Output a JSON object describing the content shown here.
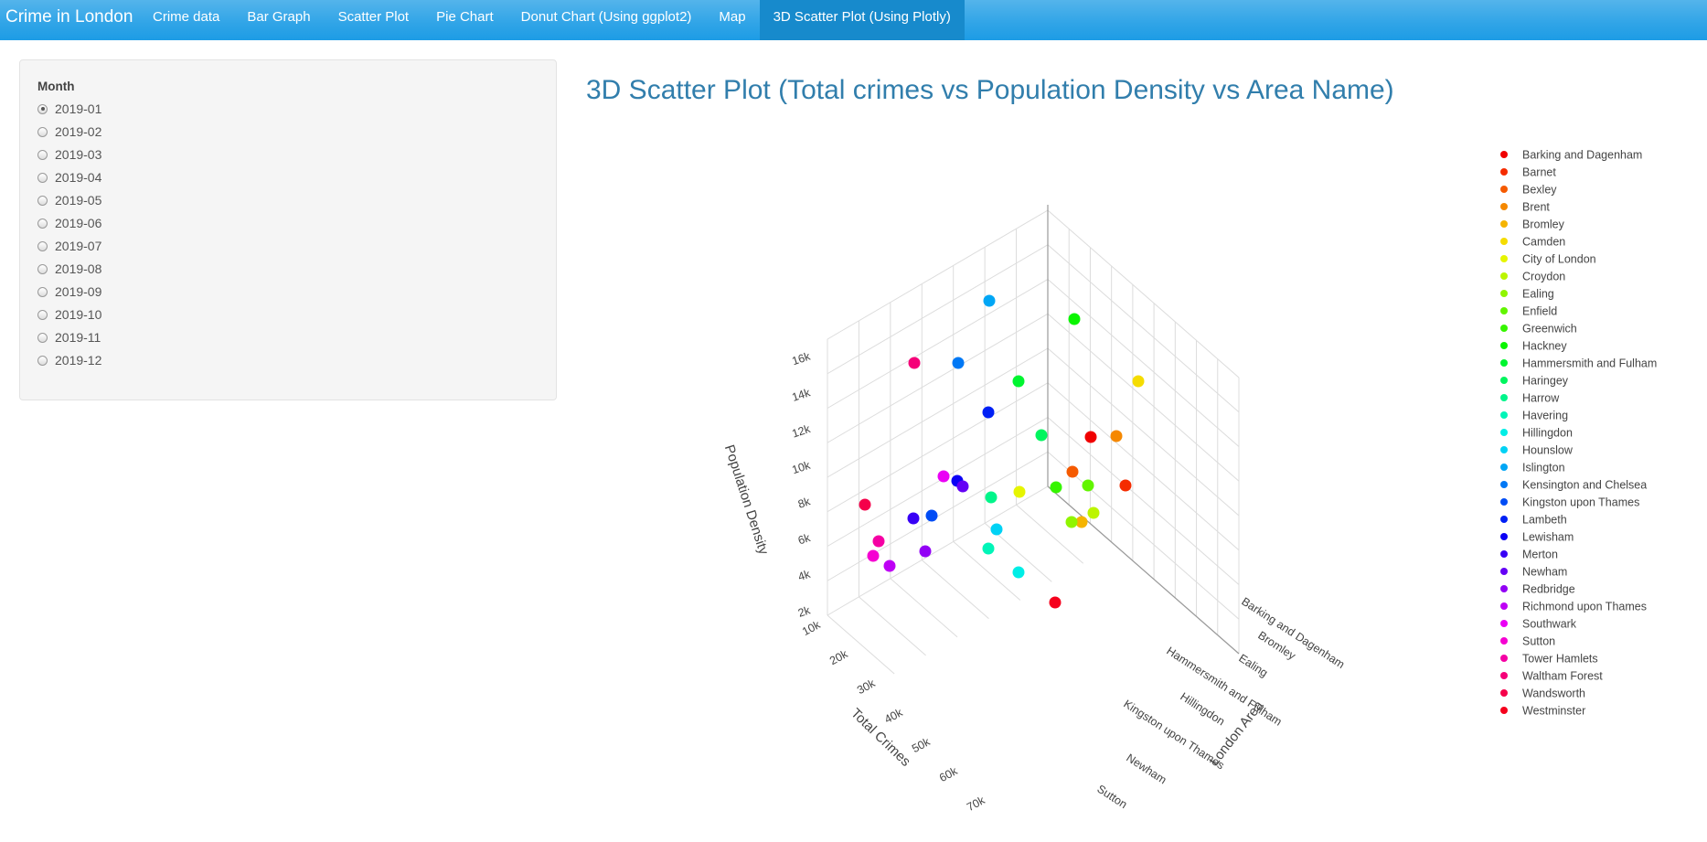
{
  "navbar": {
    "brand": "Crime in London",
    "tabs": [
      {
        "label": "Crime data"
      },
      {
        "label": "Bar Graph"
      },
      {
        "label": "Scatter Plot"
      },
      {
        "label": "Pie Chart"
      },
      {
        "label": "Donut Chart (Using ggplot2)"
      },
      {
        "label": "Map"
      },
      {
        "label": "3D Scatter Plot (Using Plotly)",
        "active": true
      }
    ]
  },
  "sidebar": {
    "label": "Month",
    "selected": "2019-01",
    "options": [
      "2019-01",
      "2019-02",
      "2019-03",
      "2019-04",
      "2019-05",
      "2019-06",
      "2019-07",
      "2019-08",
      "2019-09",
      "2019-10",
      "2019-11",
      "2019-12"
    ]
  },
  "chart_title": "3D Scatter Plot (Total crimes vs Population Density vs Area Name)",
  "chart_data": {
    "type": "scatter",
    "projection": "3d",
    "title": "3D Scatter Plot (Total crimes vs Population Density vs Area Name)",
    "axes": {
      "x": {
        "label": "Total Crimes",
        "ticks": [
          "10k",
          "20k",
          "30k",
          "40k",
          "50k",
          "60k",
          "70k"
        ]
      },
      "y": {
        "label": "London Area",
        "ticks": [
          "Barking and Dagenham",
          "Bromley",
          "Ealing",
          "Hammersmith and Fulham",
          "Hillingdon",
          "Kingston upon Thames",
          "Newham",
          "Sutton"
        ]
      },
      "z": {
        "label": "Population Density",
        "ticks": [
          "2k",
          "4k",
          "6k",
          "8k",
          "10k",
          "12k",
          "14k",
          "16k"
        ]
      }
    },
    "grid": true,
    "legend_position": "right",
    "series": [
      {
        "name": "Barking and Dagenham",
        "color": "#f00000"
      },
      {
        "name": "Barnet",
        "color": "#f52c00"
      },
      {
        "name": "Bexley",
        "color": "#f55a00"
      },
      {
        "name": "Brent",
        "color": "#f58800"
      },
      {
        "name": "Bromley",
        "color": "#f5b400"
      },
      {
        "name": "Camden",
        "color": "#f5dc00"
      },
      {
        "name": "City of London",
        "color": "#e6f500"
      },
      {
        "name": "Croydon",
        "color": "#bcf500"
      },
      {
        "name": "Ealing",
        "color": "#90f500"
      },
      {
        "name": "Enfield",
        "color": "#62f500"
      },
      {
        "name": "Greenwich",
        "color": "#36f500"
      },
      {
        "name": "Hackney",
        "color": "#0af500"
      },
      {
        "name": "Hammersmith and Fulham",
        "color": "#00f530"
      },
      {
        "name": "Haringey",
        "color": "#00f55e"
      },
      {
        "name": "Harrow",
        "color": "#00f58a"
      },
      {
        "name": "Havering",
        "color": "#00f5b8"
      },
      {
        "name": "Hillingdon",
        "color": "#00eee6"
      },
      {
        "name": "Hounslow",
        "color": "#00d2f5"
      },
      {
        "name": "Islington",
        "color": "#00a6f5"
      },
      {
        "name": "Kensington and Chelsea",
        "color": "#0078f5"
      },
      {
        "name": "Kingston upon Thames",
        "color": "#004cf5"
      },
      {
        "name": "Lambeth",
        "color": "#0020f5"
      },
      {
        "name": "Lewisham",
        "color": "#0c00f5"
      },
      {
        "name": "Merton",
        "color": "#3800f5"
      },
      {
        "name": "Newham",
        "color": "#6400f5"
      },
      {
        "name": "Redbridge",
        "color": "#9200f5"
      },
      {
        "name": "Richmond upon Thames",
        "color": "#be00f5"
      },
      {
        "name": "Southwark",
        "color": "#ea00f5"
      },
      {
        "name": "Sutton",
        "color": "#f500d2"
      },
      {
        "name": "Tower Hamlets",
        "color": "#f500a4"
      },
      {
        "name": "Waltham Forest",
        "color": "#f50078"
      },
      {
        "name": "Wandsworth",
        "color": "#f5004a"
      },
      {
        "name": "Westminster",
        "color": "#f5001c"
      }
    ]
  }
}
